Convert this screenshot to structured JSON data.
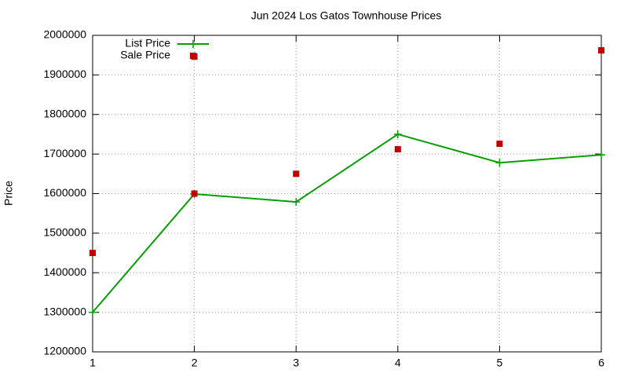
{
  "chart_data": {
    "type": "line",
    "title": "Jun 2024 Los Gatos Townhouse Prices",
    "y_label": "Price",
    "x": [
      1,
      2,
      2,
      3,
      4,
      5,
      6
    ],
    "xlim": [
      1,
      6
    ],
    "xticks": [
      1,
      2,
      3,
      4,
      5,
      6
    ],
    "ylim": [
      1200000,
      2000000
    ],
    "yticks": [
      1200000,
      1300000,
      1400000,
      1500000,
      1600000,
      1700000,
      1800000,
      1900000,
      2000000
    ],
    "grid": true,
    "legend": "top-left",
    "series": [
      {
        "name": "List Price",
        "color": "#00a000",
        "style": "linespoints",
        "values": [
          1300000,
          1599000,
          null,
          1579000,
          1750000,
          1678000,
          1698000
        ]
      },
      {
        "name": "Sale Price",
        "color": "#c00000",
        "style": "points",
        "values": [
          1450000,
          1946000,
          1600000,
          1650000,
          1712000,
          1726000,
          1962000
        ]
      }
    ]
  }
}
